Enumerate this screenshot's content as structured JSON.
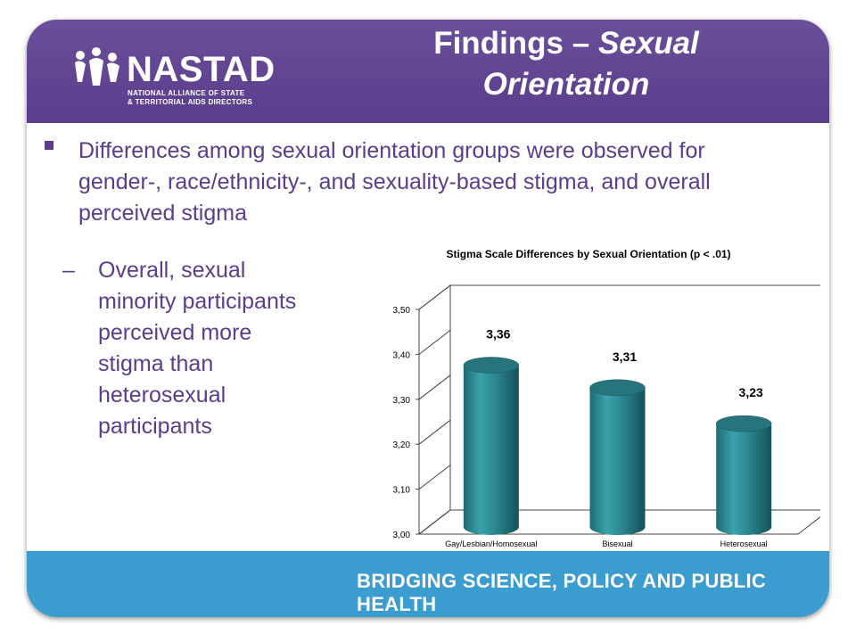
{
  "header": {
    "logo": {
      "name": "NASTAD",
      "tagline_line1": "NATIONAL ALLIANCE OF STATE",
      "tagline_line2": "& TERRITORIAL AIDS DIRECTORS",
      "icon": "people-figures-icon"
    },
    "title_prefix": "Findings – ",
    "title_italic_1": "Sexual",
    "title_italic_2": "Orientation"
  },
  "content": {
    "bullet": "Differences among sexual orientation groups were observed for gender-, race/ethnicity-, and sexuality-based stigma, and overall perceived stigma",
    "sub_dash": "–",
    "sub_bullet": "Overall, sexual minority participants perceived more stigma than heterosexual participants"
  },
  "footer": {
    "tagline": "BRIDGING SCIENCE, POLICY AND PUBLIC HEALTH"
  },
  "colors": {
    "header_purple": "#5a3d8b",
    "footer_blue": "#3b9cd0",
    "bar_teal": "#2e8a93"
  },
  "chart_data": {
    "type": "bar",
    "title": "Stigma Scale Differences by Sexual Orientation (p < .01)",
    "categories": [
      "Gay/Lesbian/Homosexual",
      "Bisexual",
      "Heterosexual"
    ],
    "values": [
      3.36,
      3.31,
      3.23
    ],
    "data_labels": [
      "3,36",
      "3,31",
      "3,23"
    ],
    "yticks": [
      "3,00",
      "3,10",
      "3,20",
      "3,30",
      "3,40",
      "3,50"
    ],
    "ylim": [
      3.0,
      3.5
    ],
    "xlabel": "",
    "ylabel": "",
    "grid": false,
    "style": "3d-cylinder"
  }
}
